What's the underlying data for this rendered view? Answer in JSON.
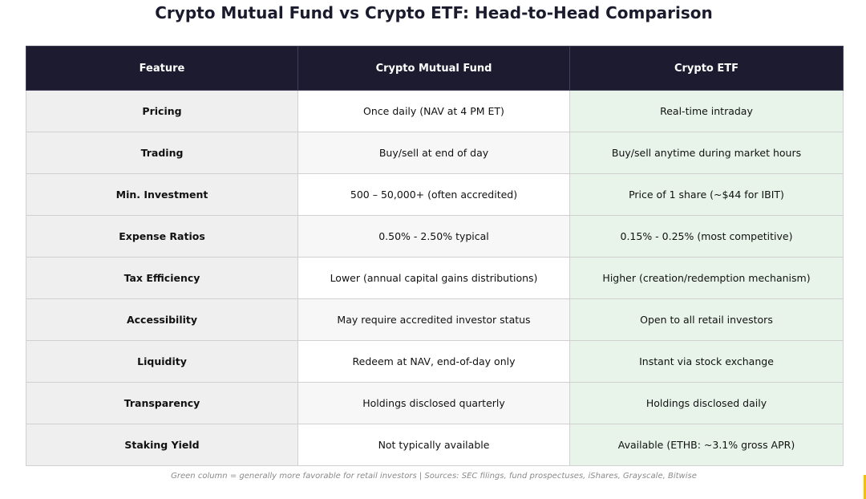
{
  "title": "Crypto Mutual Fund vs Crypto ETF: Head-to-Head Comparison",
  "chart_data": {
    "type": "table",
    "headers": [
      "Feature",
      "Crypto Mutual Fund",
      "Crypto ETF"
    ],
    "rows": [
      [
        "Pricing",
        "Once daily (NAV at 4 PM ET)",
        "Real-time intraday"
      ],
      [
        "Trading",
        "Buy/sell at end of day",
        "Buy/sell anytime during market hours"
      ],
      [
        "Min. Investment",
        "500 – 50,000+ (often accredited)",
        "Price of 1 share (~$44 for IBIT)"
      ],
      [
        "Expense Ratios",
        "0.50% - 2.50% typical",
        "0.15% - 0.25% (most competitive)"
      ],
      [
        "Tax Efficiency",
        "Lower (annual capital gains distributions)",
        "Higher (creation/redemption mechanism)"
      ],
      [
        "Accessibility",
        "May require accredited investor status",
        "Open to all retail investors"
      ],
      [
        "Liquidity",
        "Redeem at NAV, end-of-day only",
        "Instant via stock exchange"
      ],
      [
        "Transparency",
        "Holdings disclosed quarterly",
        "Holdings disclosed daily"
      ],
      [
        "Staking Yield",
        "Not typically available",
        "Available (ETHB: ~3.1% gross APR)"
      ]
    ],
    "highlight_color": "#e8f4e9",
    "header_color": "#1c1b2f"
  },
  "footnote": "Green column = generally more favorable for retail investors | Sources: SEC filings, fund prospectuses, iShares, Grayscale, Bitwise"
}
